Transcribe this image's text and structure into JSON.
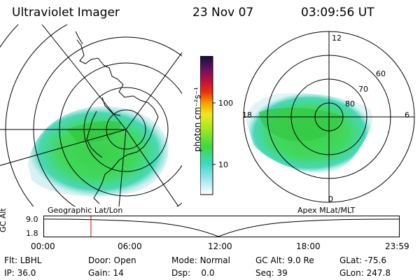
{
  "header": {
    "instrument": "Ultraviolet Imager",
    "date": "23 Nov 07",
    "time": "03:09:56 UT"
  },
  "left_panel": {
    "caption": "Geographic Lat/Lon"
  },
  "right_panel": {
    "caption": "Apex MLat/MLT",
    "mlt_labels": [
      "12",
      "18",
      "6",
      "0"
    ],
    "mlat_labels": [
      "60",
      "70",
      "80"
    ]
  },
  "colorbar": {
    "unit_label": "photon cm⁻²s⁻¹",
    "ticks": [
      "100",
      "10"
    ],
    "scale": "log"
  },
  "altitude_chart": {
    "ylabel": "GC Alt",
    "yticks": [
      "9.0",
      "1.8"
    ],
    "xticks": [
      "00:00",
      "06:00",
      "12:00",
      "18:00",
      "23:59"
    ],
    "current_time_marker": "03:09:56",
    "marker_color": "#dd0000"
  },
  "info": {
    "row1": [
      {
        "label": "Flt:",
        "value": "LBHL"
      },
      {
        "label": "Door:",
        "value": "Open"
      },
      {
        "label": "Mode:",
        "value": "Normal"
      },
      {
        "label": "GC Alt:",
        "value": "9.0 Re"
      },
      {
        "label": "GLat:",
        "value": "-75.6"
      }
    ],
    "row2": [
      {
        "label": "IP:",
        "value": "36.0"
      },
      {
        "label": "Gain:",
        "value": "14"
      },
      {
        "label": "Dsp:",
        "value": "0.0"
      },
      {
        "label": "Seq:",
        "value": "39"
      },
      {
        "label": "GLon:",
        "value": "247.8"
      }
    ]
  }
}
